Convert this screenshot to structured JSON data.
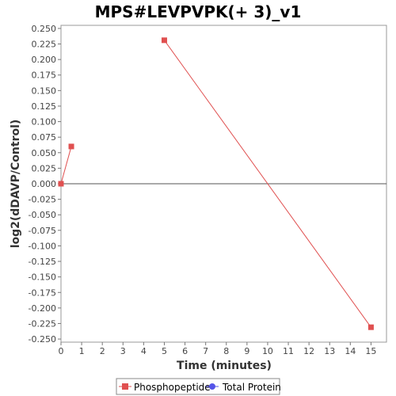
{
  "chart_data": {
    "type": "line",
    "title": "MPS#LEVPVPK(+ 3)_v1",
    "xlabel": "Time (minutes)",
    "ylabel": "log2(dDAVP/Control)",
    "xlim": [
      0,
      15.75
    ],
    "ylim": [
      -0.255,
      0.255
    ],
    "x_ticks": [
      0,
      1,
      2,
      3,
      4,
      5,
      6,
      7,
      8,
      9,
      10,
      11,
      12,
      13,
      14,
      15
    ],
    "y_ticks": [
      0.25,
      0.225,
      0.2,
      0.175,
      0.15,
      0.125,
      0.1,
      0.075,
      0.05,
      0.025,
      0,
      -0.025,
      -0.05,
      -0.075,
      -0.1,
      -0.125,
      -0.15,
      -0.175,
      -0.2,
      -0.225,
      -0.25
    ],
    "y_tick_labels": [
      "0.250",
      "0.225",
      "0.200",
      "0.175",
      "0.150",
      "0.125",
      "0.100",
      "0.075",
      "0.050",
      "0.025",
      "0.000",
      "-0.025",
      "-0.050",
      "-0.075",
      "-0.100",
      "-0.125",
      "-0.150",
      "-0.175",
      "-0.200",
      "-0.225",
      "-0.250"
    ],
    "grid": false,
    "legend_position": "bottom-center",
    "series": [
      {
        "name": "Phosphopeptide",
        "color": "#e05050",
        "marker": "square",
        "segments": [
          [
            {
              "x": 0,
              "y": 0.0
            },
            {
              "x": 0.5,
              "y": 0.06
            }
          ],
          [
            {
              "x": 5,
              "y": 0.231
            },
            {
              "x": 15,
              "y": -0.231
            }
          ]
        ]
      },
      {
        "name": "Total Protein",
        "color": "#5555e8",
        "marker": "circle",
        "segments": []
      }
    ]
  }
}
